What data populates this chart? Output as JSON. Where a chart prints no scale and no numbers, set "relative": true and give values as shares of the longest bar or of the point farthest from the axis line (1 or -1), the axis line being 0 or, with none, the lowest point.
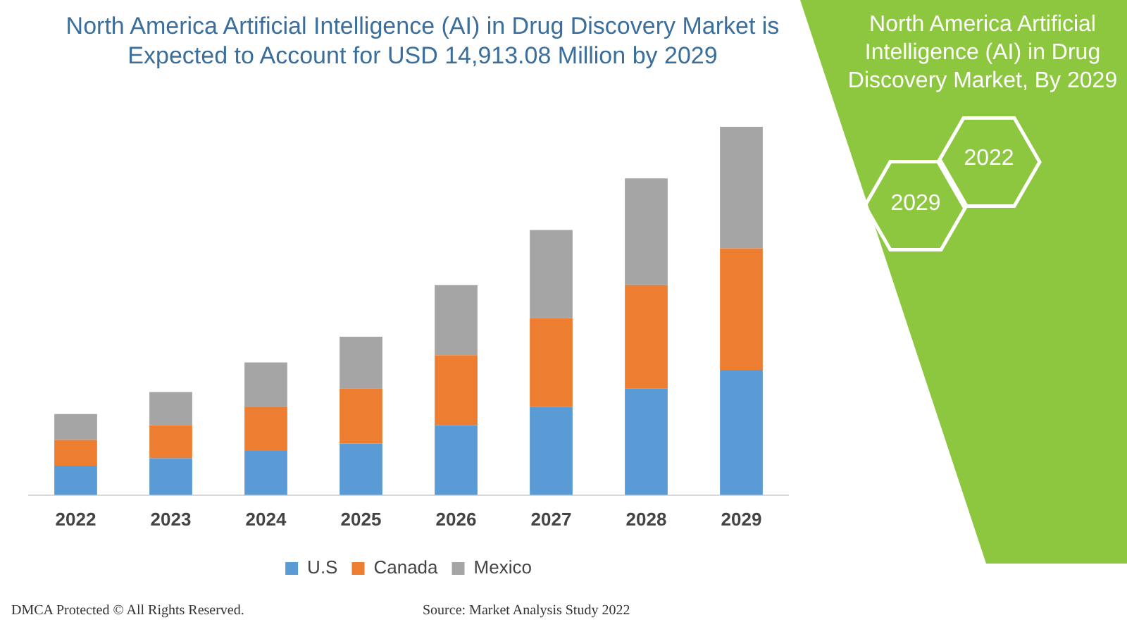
{
  "chart_data": {
    "type": "bar",
    "title": "North America Artificial Intelligence (AI) in Drug Discovery Market is Expected to Account for USD 14,913.08 Million by 2029",
    "categories": [
      "2022",
      "2023",
      "2024",
      "2025",
      "2026",
      "2027",
      "2028",
      "2029"
    ],
    "series": [
      {
        "name": "U.S",
        "color": "#5b9bd5",
        "values": [
          0.08,
          0.1,
          0.12,
          0.14,
          0.19,
          0.24,
          0.29,
          0.34
        ]
      },
      {
        "name": "Canada",
        "color": "#ed7d31",
        "values": [
          0.07,
          0.09,
          0.12,
          0.15,
          0.19,
          0.24,
          0.28,
          0.33
        ]
      },
      {
        "name": "Mexico",
        "color": "#a5a5a5",
        "values": [
          0.07,
          0.09,
          0.12,
          0.14,
          0.19,
          0.24,
          0.29,
          0.33
        ]
      }
    ],
    "stacked": true,
    "relative": true,
    "grid": false,
    "legend": "bottom",
    "annotations": [
      "North America Artificial Intelligence (AI) in Drug Discovery Market, By 2029",
      "2022",
      "2029",
      "DMCA Protected © All Rights Reserved.",
      "Source: Market Analysis Study 2022"
    ]
  }
}
